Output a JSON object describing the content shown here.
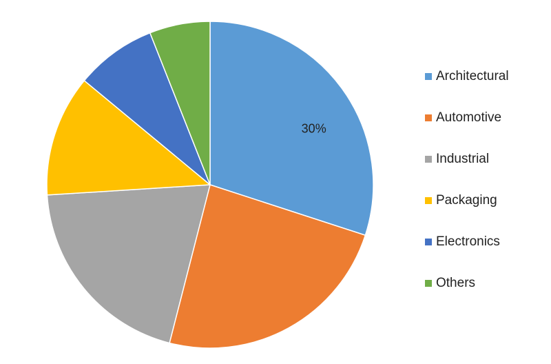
{
  "chart_data": {
    "type": "pie",
    "categories": [
      "Architectural",
      "Automotive",
      "Industrial",
      "Packaging",
      "Electronics",
      "Others"
    ],
    "values": [
      30,
      24,
      20,
      12,
      8,
      6
    ],
    "value_labels": [
      "30%",
      null,
      null,
      null,
      null,
      null
    ],
    "colors": [
      "#5b9bd5",
      "#ed7d31",
      "#a5a5a5",
      "#ffc000",
      "#4472c4",
      "#70ad47"
    ],
    "legend": "right"
  }
}
